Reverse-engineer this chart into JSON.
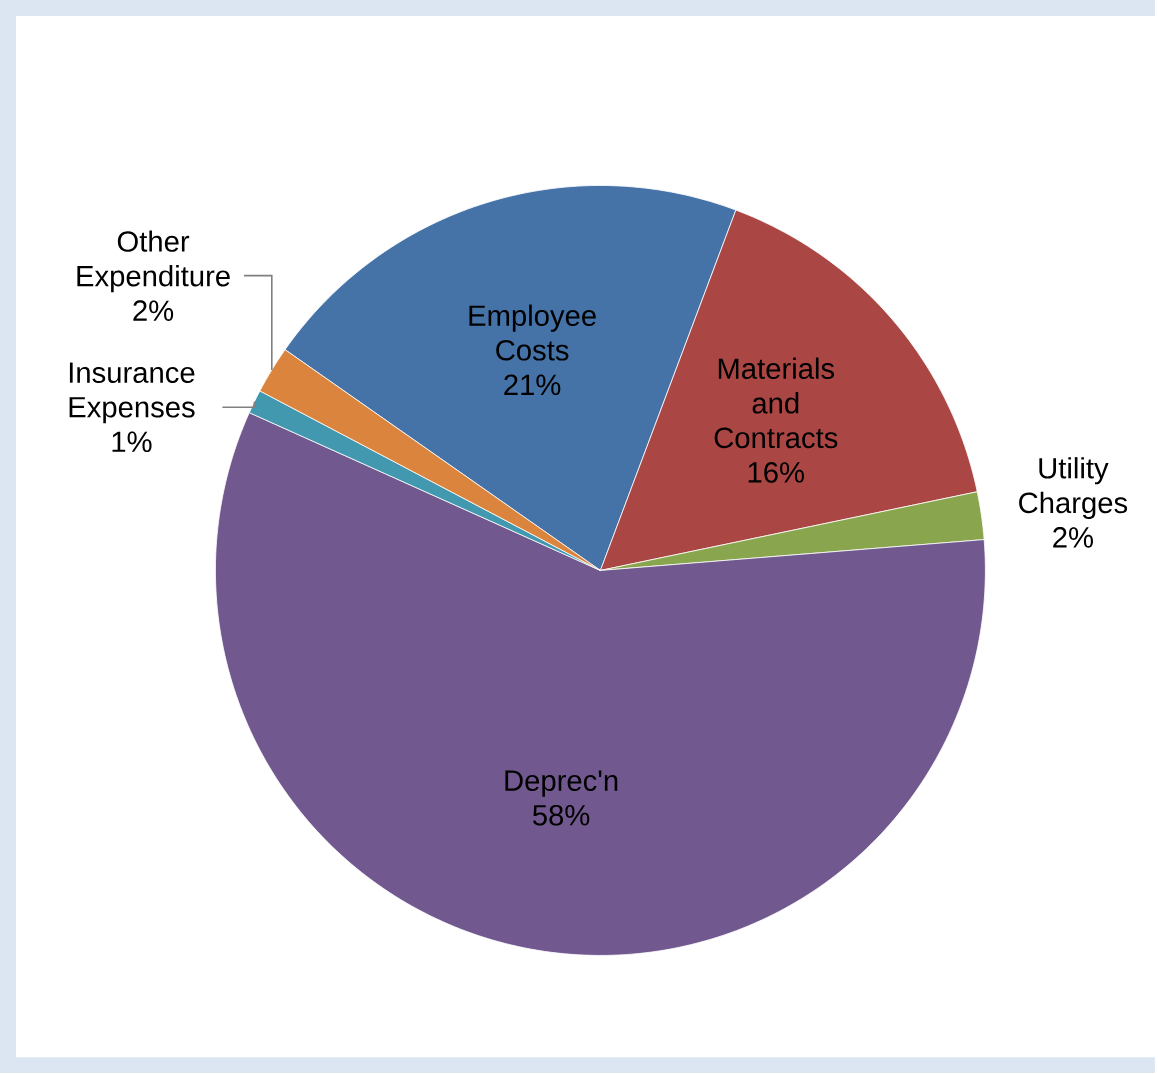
{
  "chart_data": {
    "type": "pie",
    "categories": [
      "Employee Costs",
      "Materials and Contracts",
      "Utility Charges",
      "Deprec'n",
      "Insurance Expenses",
      "Other Expenditure"
    ],
    "values": [
      21,
      16,
      2,
      58,
      1,
      2
    ],
    "value_labels": [
      "21%",
      "16%",
      "2%",
      "58%",
      "1%",
      "2%"
    ],
    "colors": [
      "#4572a7",
      "#aa4643",
      "#89a54e",
      "#71588f",
      "#4198af",
      "#db843d"
    ]
  }
}
